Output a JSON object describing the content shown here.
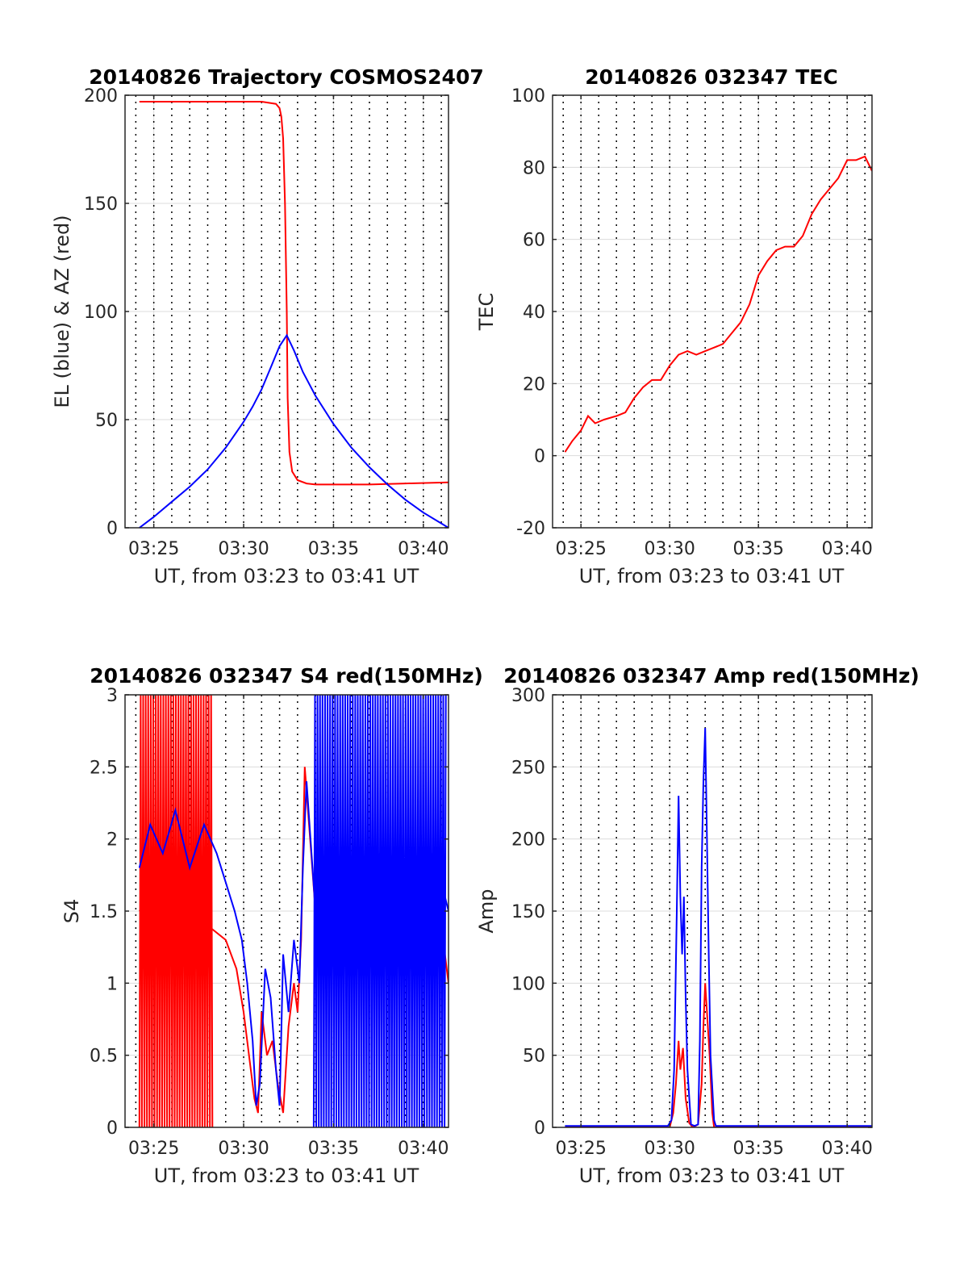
{
  "figure": {
    "background": "#ffffff"
  },
  "colors": {
    "red": "#ff0000",
    "blue": "#0000ff",
    "axis": "#262626",
    "grid": "#dcdcdc"
  },
  "chart_data": [
    {
      "id": "trajectory",
      "type": "line",
      "title": "20140826 Trajectory COSMOS2407",
      "xlabel": "UT, from 03:23 to 03:41 UT",
      "ylabel": "EL (blue) & AZ (red)",
      "xlim": [
        23.4,
        41.4
      ],
      "ylim": [
        0,
        200
      ],
      "xticks": [
        25,
        30,
        35,
        40
      ],
      "xtick_labels": [
        "03:25",
        "03:30",
        "03:35",
        "03:40"
      ],
      "yticks": [
        0,
        50,
        100,
        150,
        200
      ],
      "ytick_labels": [
        "0",
        "50",
        "100",
        "150",
        "200"
      ],
      "grid": true,
      "minute_markers": true,
      "series": [
        {
          "color": "#ff0000",
          "x": [
            24.2,
            28.0,
            31.0,
            31.8,
            32.0,
            32.1,
            32.2,
            32.3,
            32.4,
            32.45,
            32.55,
            32.7,
            33.0,
            33.5,
            34.0,
            35.0,
            37.0,
            39.0,
            41.4
          ],
          "y": [
            197,
            197,
            197,
            196,
            194,
            190,
            180,
            150,
            100,
            60,
            35,
            26,
            22,
            20.5,
            20,
            20,
            20,
            20.5,
            21
          ]
        },
        {
          "color": "#0000ff",
          "x": [
            24.2,
            25.0,
            26.0,
            27.0,
            28.0,
            29.0,
            30.0,
            30.5,
            31.0,
            31.5,
            32.0,
            32.4,
            32.8,
            33.3,
            34.0,
            35.0,
            36.0,
            37.0,
            38.0,
            39.0,
            40.0,
            41.0,
            41.4
          ],
          "y": [
            0,
            5,
            12,
            19,
            27,
            37,
            49,
            56,
            64,
            74,
            84,
            89,
            82,
            72,
            61,
            48,
            37,
            28,
            20,
            13,
            7,
            2,
            0
          ]
        }
      ]
    },
    {
      "id": "tec",
      "type": "line",
      "title": "20140826 032347 TEC",
      "xlabel": "UT, from 03:23 to 03:41 UT",
      "ylabel": "TEC",
      "xlim": [
        23.4,
        41.4
      ],
      "ylim": [
        -20,
        100
      ],
      "xticks": [
        25,
        30,
        35,
        40
      ],
      "xtick_labels": [
        "03:25",
        "03:30",
        "03:35",
        "03:40"
      ],
      "yticks": [
        -20,
        0,
        20,
        40,
        60,
        80,
        100
      ],
      "ytick_labels": [
        "-20",
        "0",
        "20",
        "40",
        "60",
        "80",
        "100"
      ],
      "grid": true,
      "minute_markers": true,
      "series": [
        {
          "color": "#ff0000",
          "x": [
            24.1,
            24.5,
            25.0,
            25.4,
            25.8,
            26.3,
            27.0,
            27.5,
            28.0,
            28.5,
            29.0,
            29.5,
            30.0,
            30.5,
            31.0,
            31.5,
            32.0,
            32.5,
            33.0,
            33.5,
            34.0,
            34.5,
            35.0,
            35.5,
            36.0,
            36.5,
            37.0,
            37.5,
            38.0,
            38.5,
            39.0,
            39.5,
            40.0,
            40.5,
            41.0,
            41.4
          ],
          "y": [
            1,
            4,
            7,
            11,
            9,
            10,
            11,
            12,
            16,
            19,
            21,
            21,
            25,
            28,
            29,
            28,
            29,
            30,
            31,
            34,
            37,
            42,
            50,
            54,
            57,
            58,
            58,
            61,
            67,
            71,
            74,
            77,
            82,
            82,
            83,
            79
          ]
        }
      ]
    },
    {
      "id": "s4",
      "type": "line",
      "title": "20140826 032347 S4 red(150MHz)",
      "xlabel": "UT, from 03:23 to 03:41 UT",
      "ylabel": "S4",
      "xlim": [
        23.4,
        41.4
      ],
      "ylim": [
        0,
        3
      ],
      "xticks": [
        25,
        30,
        35,
        40
      ],
      "xtick_labels": [
        "03:25",
        "03:30",
        "03:35",
        "03:40"
      ],
      "yticks": [
        0,
        0.5,
        1,
        1.5,
        2,
        2.5,
        3
      ],
      "ytick_labels": [
        "0",
        "0.5",
        "1",
        "1.5",
        "2",
        "2.5",
        "3"
      ],
      "grid": true,
      "minute_markers": true,
      "series": [
        {
          "color": "#ff0000",
          "x": [
            24.2,
            25.0,
            26.0,
            27.0,
            28.0,
            29.0,
            29.6,
            30.0,
            30.4,
            30.6,
            30.8,
            31.0,
            31.3,
            31.6,
            31.9,
            32.2,
            32.5,
            32.8,
            33.0,
            33.2,
            33.4,
            34.0,
            35.0,
            36.0,
            37.0,
            38.0,
            39.0,
            40.0,
            41.0,
            41.4
          ],
          "y": [
            1.5,
            1.6,
            1.5,
            1.7,
            1.4,
            1.3,
            1.1,
            0.8,
            0.4,
            0.2,
            0.1,
            0.8,
            0.5,
            0.6,
            0.3,
            0.1,
            0.7,
            1.0,
            0.8,
            1.3,
            2.5,
            1.5,
            1.8,
            1.4,
            1.6,
            1.2,
            1.5,
            1.3,
            1.4,
            1.0
          ],
          "bands": [
            [
              24.2,
              28.3,
              0,
              3
            ]
          ]
        },
        {
          "color": "#0000ff",
          "x": [
            24.2,
            24.8,
            25.5,
            26.2,
            27.0,
            27.8,
            28.5,
            29.0,
            29.5,
            29.9,
            30.2,
            30.5,
            30.7,
            30.9,
            31.2,
            31.5,
            31.8,
            32.0,
            32.2,
            32.5,
            32.8,
            33.1,
            33.3,
            33.5,
            34.0,
            35.0,
            36.0,
            37.0,
            38.0,
            39.0,
            40.0,
            41.0,
            41.4
          ],
          "y": [
            1.8,
            2.1,
            1.9,
            2.2,
            1.8,
            2.1,
            1.9,
            1.7,
            1.5,
            1.3,
            1.0,
            0.6,
            0.15,
            0.3,
            1.1,
            0.9,
            0.4,
            0.15,
            1.2,
            0.8,
            1.3,
            1.0,
            1.8,
            2.4,
            1.5,
            1.7,
            1.3,
            1.8,
            1.5,
            1.6,
            1.4,
            1.7,
            1.5
          ],
          "bands": [
            [
              33.9,
              41.3,
              0,
              3
            ]
          ]
        }
      ]
    },
    {
      "id": "amp",
      "type": "line",
      "title": "20140826 032347 Amp red(150MHz)",
      "xlabel": "UT, from 03:23 to 03:41 UT",
      "ylabel": "Amp",
      "xlim": [
        23.4,
        41.4
      ],
      "ylim": [
        0,
        300
      ],
      "xticks": [
        25,
        30,
        35,
        40
      ],
      "xtick_labels": [
        "03:25",
        "03:30",
        "03:35",
        "03:40"
      ],
      "yticks": [
        0,
        50,
        100,
        150,
        200,
        250,
        300
      ],
      "ytick_labels": [
        "0",
        "50",
        "100",
        "150",
        "200",
        "250",
        "300"
      ],
      "grid": true,
      "minute_markers": true,
      "series": [
        {
          "color": "#ff0000",
          "x": [
            24.1,
            30.0,
            30.2,
            30.35,
            30.5,
            30.6,
            30.75,
            30.9,
            31.1,
            31.3,
            31.6,
            31.8,
            31.9,
            32.0,
            32.1,
            32.25,
            32.4,
            32.5,
            41.4
          ],
          "y": [
            0,
            0,
            10,
            30,
            60,
            40,
            55,
            20,
            3,
            0,
            2,
            30,
            70,
            100,
            80,
            50,
            10,
            0,
            0
          ]
        },
        {
          "color": "#0000ff",
          "x": [
            24.1,
            29.9,
            30.1,
            30.25,
            30.4,
            30.5,
            30.6,
            30.7,
            30.8,
            30.9,
            31.0,
            31.2,
            31.4,
            31.6,
            31.7,
            31.8,
            31.9,
            32.0,
            32.1,
            32.2,
            32.3,
            32.5,
            32.6,
            41.4
          ],
          "y": [
            1,
            1,
            5,
            40,
            150,
            230,
            160,
            120,
            160,
            90,
            40,
            2,
            1,
            2,
            60,
            180,
            240,
            277,
            200,
            120,
            50,
            5,
            1,
            1
          ]
        }
      ]
    }
  ]
}
